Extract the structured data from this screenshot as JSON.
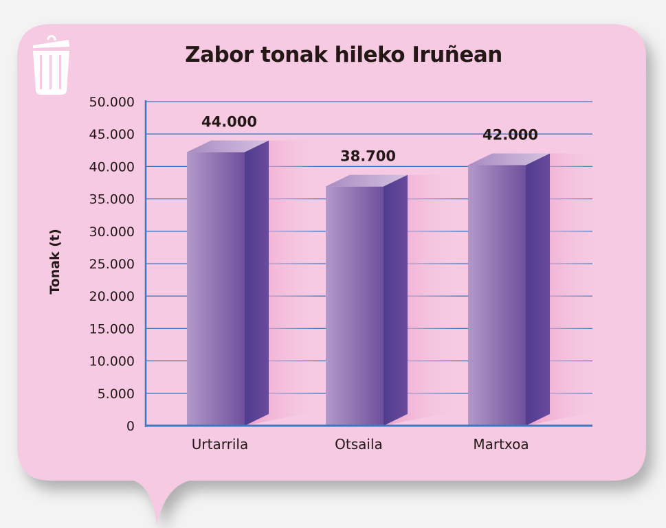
{
  "chart_data": {
    "type": "bar",
    "title": "Zabor tonak hileko Iruñean",
    "xlabel": "",
    "ylabel": "Tonak (t)",
    "categories": [
      "Urtarrila",
      "Otsaila",
      "Martxoa"
    ],
    "values": [
      44000,
      38700,
      42000
    ],
    "data_labels": [
      "44.000",
      "38.700",
      "42.000"
    ],
    "ylim": [
      0,
      50000
    ],
    "yticks": [
      0,
      5000,
      10000,
      15000,
      20000,
      25000,
      30000,
      35000,
      40000,
      45000,
      50000
    ],
    "ytick_labels": [
      "0",
      "5.000",
      "10.000",
      "15.000",
      "20.000",
      "25.000",
      "30.000",
      "35.000",
      "40.000",
      "45.000",
      "50.000"
    ],
    "grid": true,
    "style": "3d",
    "colors": {
      "background": "#f5cae2",
      "bar_front": "#8a6aaa",
      "bar_side": "#56418f",
      "grid": "#3a78c0",
      "page": "#f3f3f3"
    }
  },
  "icons": {
    "corner": "trash-can-icon"
  }
}
